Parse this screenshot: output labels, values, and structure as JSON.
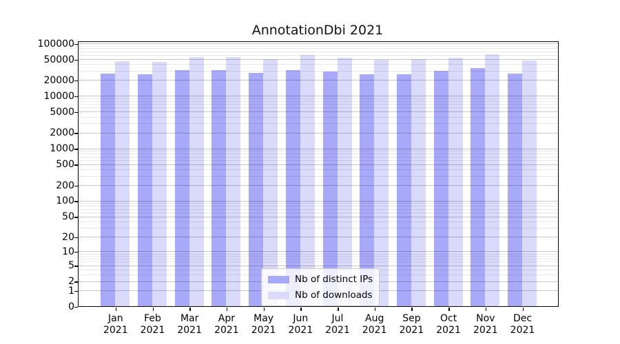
{
  "title": "AnnotationDbi 2021",
  "chart_data": {
    "type": "bar",
    "title": "AnnotationDbi 2021",
    "xlabel": "",
    "ylabel": "",
    "categories": [
      "Jan",
      "Feb",
      "Mar",
      "Apr",
      "May",
      "Jun",
      "Jul",
      "Aug",
      "Sep",
      "Oct",
      "Nov",
      "Dec"
    ],
    "year": "2021",
    "series": [
      {
        "name": "Nb of distinct IPs",
        "color": "#a9a9f9",
        "values": [
          26500,
          25600,
          31200,
          30600,
          27400,
          31200,
          29300,
          26000,
          26000,
          29900,
          34100,
          26500
        ]
      },
      {
        "name": "Nb of downloads",
        "color": "#dadafb",
        "values": [
          46000,
          44200,
          55200,
          54700,
          50500,
          59300,
          53600,
          48500,
          49500,
          53600,
          61700,
          47500
        ]
      }
    ],
    "yticks": [
      0,
      1,
      2,
      5,
      10,
      20,
      50,
      100,
      200,
      500,
      1000,
      2000,
      5000,
      10000,
      20000,
      50000,
      100000
    ],
    "ylim": [
      0,
      106000
    ],
    "scale": "log10(value+1)",
    "grid": true,
    "legend_position": "lower center"
  },
  "colors": {
    "distinct_ips": "#a9a9f9",
    "downloads": "#dadafb",
    "grid_major": "rgba(0,0,0,0.22)",
    "grid_minor": "rgba(0,0,0,0.09)",
    "axis": "#000000"
  }
}
